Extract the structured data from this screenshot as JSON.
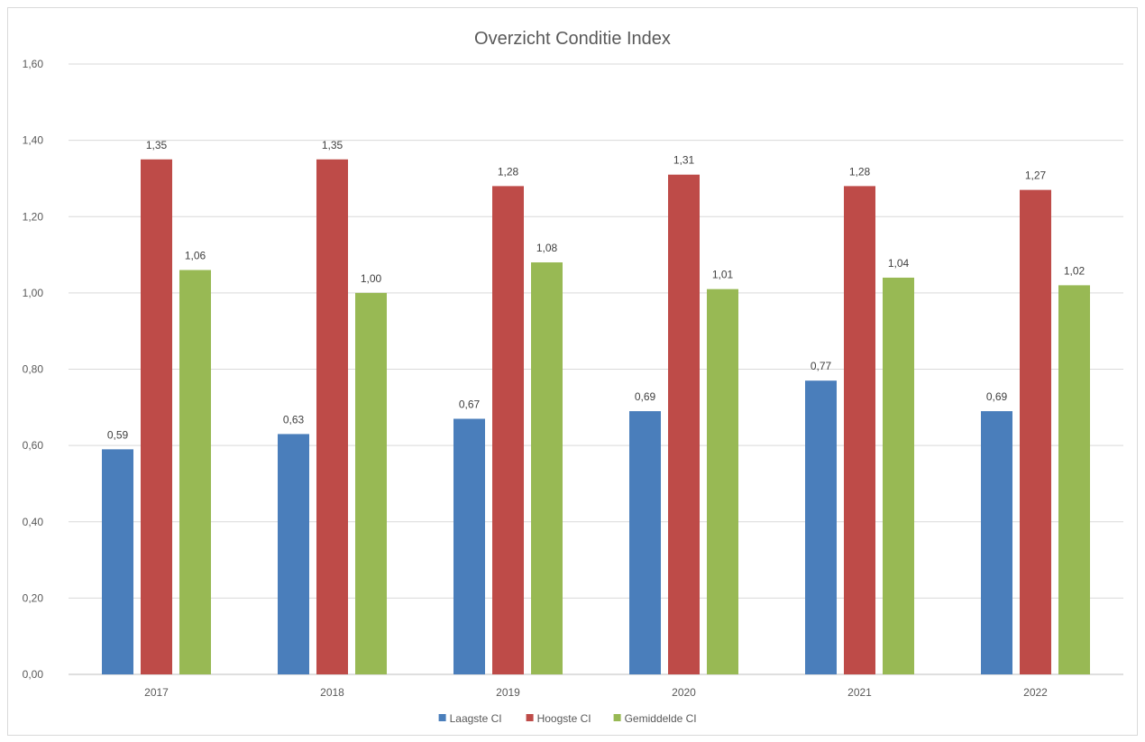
{
  "chart_data": {
    "type": "bar",
    "title": "Overzicht Conditie Index",
    "categories": [
      "2017",
      "2018",
      "2019",
      "2020",
      "2021",
      "2022"
    ],
    "series": [
      {
        "name": "Laagste CI",
        "color": "#4a7ebb",
        "values": [
          0.59,
          0.63,
          0.67,
          0.69,
          0.77,
          0.69
        ],
        "labels": [
          "0,59",
          "0,63",
          "0,67",
          "0,69",
          "0,77",
          "0,69"
        ]
      },
      {
        "name": "Hoogste CI",
        "color": "#be4b48",
        "values": [
          1.35,
          1.35,
          1.28,
          1.31,
          1.28,
          1.27
        ],
        "labels": [
          "1,35",
          "1,35",
          "1,28",
          "1,31",
          "1,28",
          "1,27"
        ]
      },
      {
        "name": "Gemiddelde CI",
        "color": "#98b954",
        "values": [
          1.06,
          1.0,
          1.08,
          1.01,
          1.04,
          1.02
        ],
        "labels": [
          "1,06",
          "1,00",
          "1,08",
          "1,01",
          "1,04",
          "1,02"
        ]
      }
    ],
    "yticks": [
      "0,00",
      "0,20",
      "0,40",
      "0,60",
      "0,80",
      "1,00",
      "1,20",
      "1,40",
      "1,60"
    ],
    "ylim": [
      0,
      1.6
    ],
    "xlabel": "",
    "ylabel": "",
    "grid": true,
    "legend_position": "bottom"
  }
}
